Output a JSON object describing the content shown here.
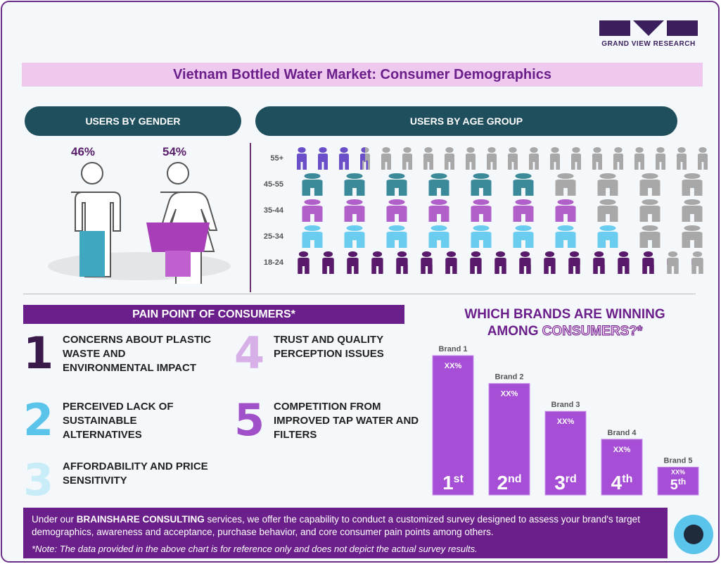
{
  "brand": {
    "logo_text": "GRAND VIEW RESEARCH"
  },
  "title": "Vietnam Bottled Water Market: Consumer Demographics",
  "gender": {
    "header": "USERS BY GENDER",
    "male_pct": "46%",
    "female_pct": "54%",
    "male_color": "#3fa8c0",
    "female_color": "#a83fb8"
  },
  "age": {
    "header": "USERS BY AGE GROUP",
    "rows": [
      {
        "label": "55+",
        "filled": 3.5,
        "total": 20,
        "icon": "elderly-person-icon",
        "color": "#6a4fc8"
      },
      {
        "label": "45-55",
        "filled": 6,
        "total": 10,
        "icon": "family-icon",
        "color": "#3a8a9a"
      },
      {
        "label": "35-44",
        "filled": 7,
        "total": 10,
        "icon": "parents-child-icon",
        "color": "#b060c8"
      },
      {
        "label": "25-34",
        "filled": 8,
        "total": 10,
        "icon": "couple-icon",
        "color": "#6acdf0"
      },
      {
        "label": "18-24",
        "filled": 15,
        "total": 17,
        "icon": "running-person-icon",
        "color": "#5a1a6b"
      }
    ]
  },
  "pain": {
    "header": "PAIN POINT OF CONSUMERS*",
    "items": [
      {
        "num": "1",
        "text": "CONCERNS ABOUT PLASTIC WASTE AND ENVIRONMENTAL IMPACT",
        "color": "#3a1a4a"
      },
      {
        "num": "2",
        "text": "PERCEIVED LACK OF SUSTAINABLE ALTERNATIVES",
        "color": "#5bc4ea"
      },
      {
        "num": "3",
        "text": "AFFORDABILITY AND PRICE SENSITIVITY",
        "color": "#c8ecf8"
      },
      {
        "num": "4",
        "text": "TRUST AND QUALITY PERCEPTION ISSUES",
        "color": "#d8b0e8"
      },
      {
        "num": "5",
        "text": "COMPETITION FROM IMPROVED TAP WATER AND FILTERS",
        "color": "#a050c8"
      }
    ]
  },
  "chart_data": {
    "type": "bar",
    "title_part1": "WHICH BRANDS ARE WINNING",
    "title_part2": "AMONG",
    "title_highlight": "CONSUMERS?*",
    "categories": [
      "Brand 1",
      "Brand 2",
      "Brand 3",
      "Brand 4",
      "Brand 5"
    ],
    "values": [
      5,
      4,
      3,
      2,
      1
    ],
    "value_labels": [
      "XX%",
      "XX%",
      "XX%",
      "XX%",
      "XX%"
    ],
    "ranks": [
      {
        "n": "1",
        "s": "st"
      },
      {
        "n": "2",
        "s": "nd"
      },
      {
        "n": "3",
        "s": "rd"
      },
      {
        "n": "4",
        "s": "th"
      },
      {
        "n": "5",
        "s": "th"
      }
    ],
    "color": "#a64fd6"
  },
  "footer": {
    "pre": "Under our ",
    "bold": "BRAINSHARE CONSULTING",
    "post": " services, we offer the capability to conduct a customized survey designed to assess your brand's target demographics, awareness and acceptance, purchase behavior, and core consumer pain points among others.",
    "note": "*Note: The data provided in the above chart is for reference only and does not depict the actual survey results."
  }
}
